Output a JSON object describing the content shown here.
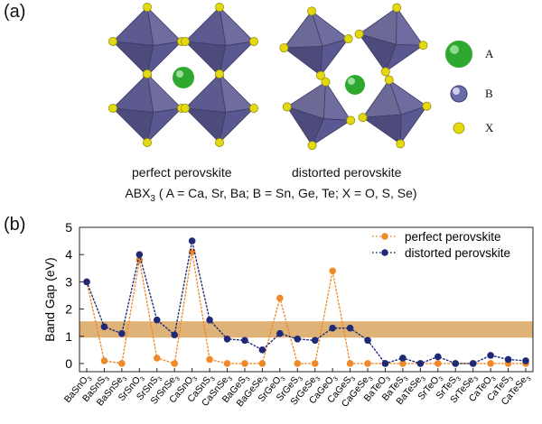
{
  "panel_a": {
    "label": "(a)",
    "perfect_caption": "perfect perovskite",
    "distorted_caption": "distorted perovskite",
    "formula_prefix": "ABX",
    "formula_sub": "3",
    "formula_rest": " ( A = Ca, Sr, Ba; B = Sn, Ge, Te; X = O, S, Se)",
    "site_labels": [
      "A",
      "B",
      "X"
    ],
    "colors": {
      "octahedron": "#5c5a8e",
      "A": "#2fa82f",
      "B": "#6a6aa8",
      "X": "#e4d80e"
    }
  },
  "panel_b": {
    "label": "(b)"
  },
  "chart_data": {
    "type": "line",
    "ylabel": "Band Gap (eV)",
    "ylim": [
      -0.3,
      5
    ],
    "yticks": [
      0,
      1,
      2,
      3,
      4,
      5
    ],
    "shaded_band": [
      0.95,
      1.55
    ],
    "shaded_color": "#d9a55f",
    "categories": [
      [
        "BaSnO",
        "3"
      ],
      [
        "BaSnS",
        "3"
      ],
      [
        "BaSnSe",
        "3"
      ],
      [
        "SrSnO",
        "3"
      ],
      [
        "SrSnS",
        "3"
      ],
      [
        "SrSnSe",
        "3"
      ],
      [
        "CaSnO",
        "3"
      ],
      [
        "CaSnS",
        "3"
      ],
      [
        "CaSnSe",
        "3"
      ],
      [
        "BaGeS",
        "3"
      ],
      [
        "BaGeSe",
        "3"
      ],
      [
        "SrGeO",
        "3"
      ],
      [
        "SrGeS",
        "3"
      ],
      [
        "SrGeSe",
        "3"
      ],
      [
        "CaGeO",
        "3"
      ],
      [
        "CaGeS",
        "3"
      ],
      [
        "CaGeSe",
        "3"
      ],
      [
        "BaTeO",
        "3"
      ],
      [
        "BaTeS",
        "3"
      ],
      [
        "BaTeSe",
        "3"
      ],
      [
        "SrTeO",
        "3"
      ],
      [
        "SrTeS",
        "3"
      ],
      [
        "SrTeSe",
        "3"
      ],
      [
        "CaTeO",
        "3"
      ],
      [
        "CaTeS",
        "3"
      ],
      [
        "CaTeSe",
        "3"
      ]
    ],
    "series": [
      {
        "name": "perfect perovskite",
        "color": "#f08a28",
        "values": [
          3.0,
          0.1,
          0.0,
          3.8,
          0.2,
          0.0,
          4.1,
          0.15,
          0.0,
          0.0,
          0.0,
          2.4,
          0.0,
          0.0,
          3.4,
          0.0,
          0.0,
          0.0,
          0.0,
          0.0,
          0.0,
          0.0,
          0.0,
          0.0,
          0.0,
          0.0
        ]
      },
      {
        "name": "distorted perovskite",
        "color": "#1e2a78",
        "values": [
          3.0,
          1.35,
          1.1,
          4.0,
          1.6,
          1.05,
          4.5,
          1.6,
          0.9,
          0.85,
          0.5,
          1.1,
          0.9,
          0.85,
          1.3,
          1.3,
          0.85,
          0.0,
          0.2,
          0.0,
          0.25,
          0.0,
          0.0,
          0.3,
          0.15,
          0.1
        ]
      }
    ],
    "legend_position": "top-right",
    "grid": false
  }
}
